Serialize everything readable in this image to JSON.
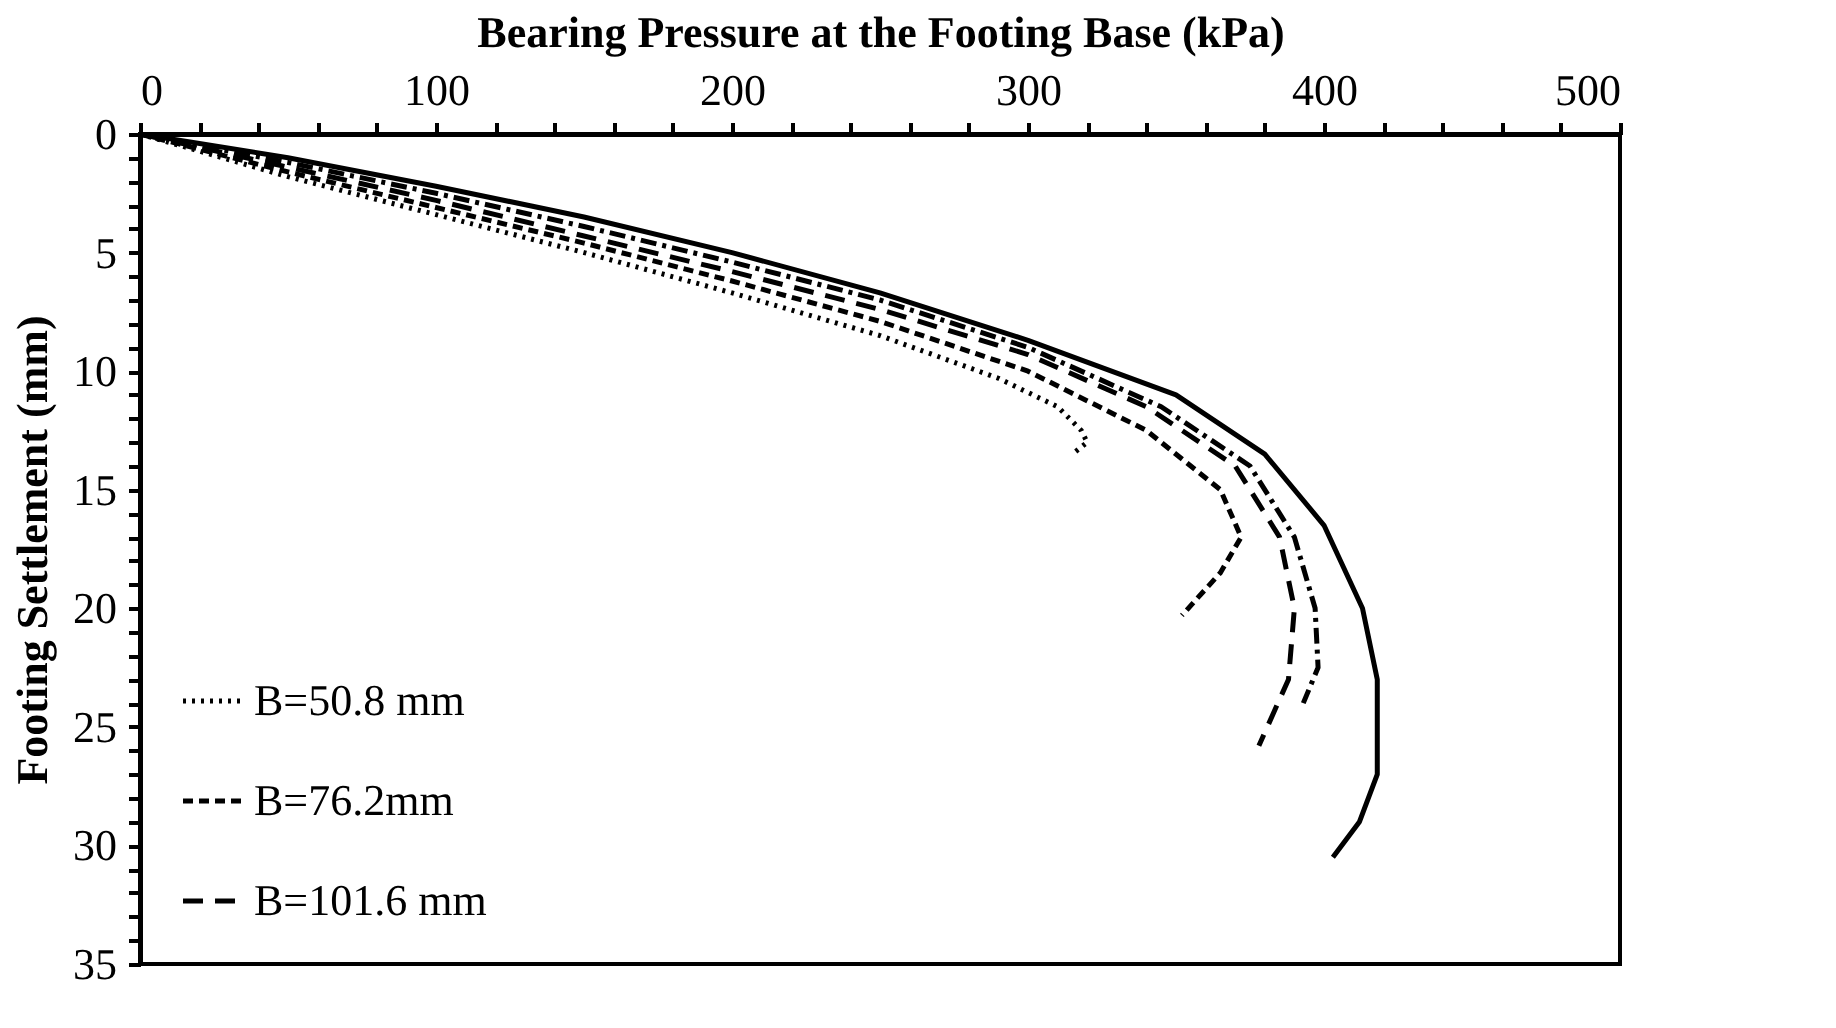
{
  "chart_data": {
    "type": "line",
    "xlabel": "Bearing Pressure at the Footing Base (kPa)",
    "ylabel": "Footing Settlement (mm)",
    "xlim": [
      0,
      500
    ],
    "ylim": [
      35,
      0
    ],
    "xticks": [
      0,
      {
        "value": 20,
        "label": null
      },
      {
        "value": 40,
        "label": null
      },
      {
        "value": 60,
        "label": null
      },
      {
        "value": 80,
        "label": null
      },
      100,
      {
        "value": 120,
        "label": null
      },
      {
        "value": 140,
        "label": null
      },
      {
        "value": 160,
        "label": null
      },
      {
        "value": 180,
        "label": null
      },
      200,
      {
        "value": 220,
        "label": null
      },
      {
        "value": 240,
        "label": null
      },
      {
        "value": 260,
        "label": null
      },
      {
        "value": 280,
        "label": null
      },
      300,
      {
        "value": 320,
        "label": null
      },
      {
        "value": 340,
        "label": null
      },
      {
        "value": 360,
        "label": null
      },
      {
        "value": 380,
        "label": null
      },
      400,
      {
        "value": 420,
        "label": null
      },
      {
        "value": 440,
        "label": null
      },
      {
        "value": 460,
        "label": null
      },
      {
        "value": 480,
        "label": null
      },
      500
    ],
    "yticks": [
      0,
      {
        "value": 1,
        "label": null
      },
      {
        "value": 2,
        "label": null
      },
      {
        "value": 3,
        "label": null
      },
      {
        "value": 4,
        "label": null
      },
      5,
      {
        "value": 6,
        "label": null
      },
      {
        "value": 7,
        "label": null
      },
      {
        "value": 8,
        "label": null
      },
      {
        "value": 9,
        "label": null
      },
      10,
      {
        "value": 11,
        "label": null
      },
      {
        "value": 12,
        "label": null
      },
      {
        "value": 13,
        "label": null
      },
      {
        "value": 14,
        "label": null
      },
      15,
      {
        "value": 16,
        "label": null
      },
      {
        "value": 17,
        "label": null
      },
      {
        "value": 18,
        "label": null
      },
      {
        "value": 19,
        "label": null
      },
      20,
      {
        "value": 21,
        "label": null
      },
      {
        "value": 22,
        "label": null
      },
      {
        "value": 23,
        "label": null
      },
      {
        "value": 24,
        "label": null
      },
      25,
      {
        "value": 26,
        "label": null
      },
      {
        "value": 27,
        "label": null
      },
      {
        "value": 28,
        "label": null
      },
      {
        "value": 29,
        "label": null
      },
      30,
      {
        "value": 31,
        "label": null
      },
      {
        "value": 32,
        "label": null
      },
      {
        "value": 33,
        "label": null
      },
      {
        "value": 34,
        "label": null
      },
      35
    ],
    "grid": false,
    "legend": "bottom left",
    "marker": "none",
    "series": [
      {
        "name": "B=50.8 mm",
        "color": "#000000",
        "line_style": "dotted",
        "x": [
          0,
          50,
          100,
          150,
          200,
          250,
          290,
          310,
          318,
          320,
          315
        ],
        "values": [
          0,
          1.8,
          3.4,
          5,
          6.7,
          8.5,
          10.3,
          11.5,
          12.5,
          13,
          13.5
        ]
      },
      {
        "name": "B=76.2mm",
        "color": "#000000",
        "line_style": "dashed",
        "x": [
          0,
          50,
          100,
          150,
          200,
          250,
          300,
          340,
          365,
          372,
          365,
          352
        ],
        "values": [
          0,
          1.6,
          3.1,
          4.6,
          6.2,
          7.9,
          10,
          12.5,
          15,
          17,
          18.5,
          20.3
        ]
      },
      {
        "name": "B=101.6 mm",
        "color": "#000000",
        "line_style": "longdash",
        "x": [
          0,
          50,
          100,
          150,
          200,
          250,
          300,
          340,
          370,
          385,
          390,
          388,
          378
        ],
        "values": [
          0,
          1.4,
          2.8,
          4.3,
          5.8,
          7.4,
          9.3,
          11.5,
          14,
          17,
          20,
          23,
          25.8
        ]
      },
      {
        "color": "#000000",
        "line_style": "dashdot",
        "x": [
          0,
          50,
          100,
          150,
          200,
          250,
          300,
          345,
          375,
          390,
          397,
          398,
          393
        ],
        "values": [
          0,
          1.2,
          2.5,
          3.9,
          5.4,
          7,
          9,
          11.5,
          14,
          17,
          20,
          22.5,
          24
        ]
      },
      {
        "color": "#000000",
        "line_style": "solid",
        "x": [
          0,
          50,
          100,
          150,
          200,
          250,
          300,
          350,
          380,
          400,
          413,
          418,
          418,
          412,
          403
        ],
        "values": [
          0,
          1,
          2.2,
          3.5,
          5,
          6.7,
          8.7,
          11,
          13.5,
          16.5,
          20,
          23,
          27,
          29,
          30.5
        ]
      }
    ]
  }
}
